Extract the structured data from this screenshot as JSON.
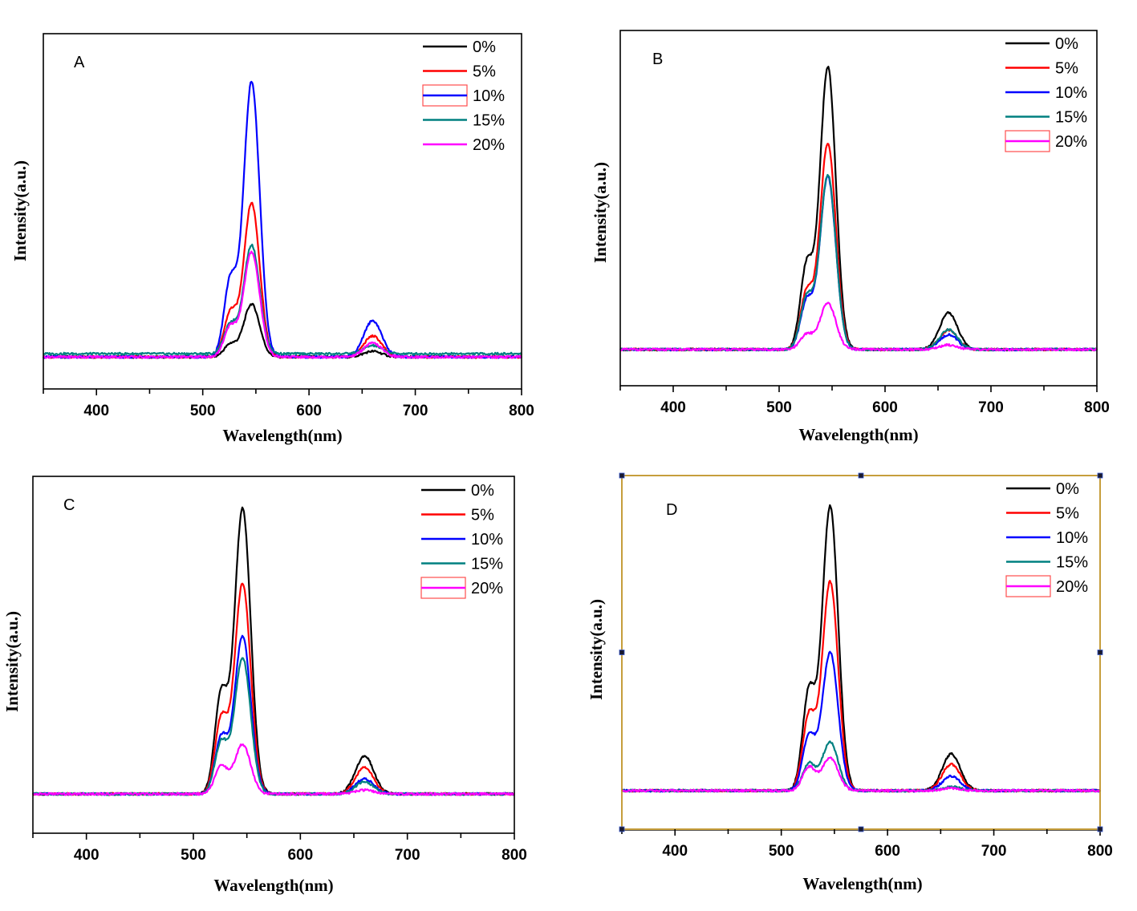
{
  "chart_data": [
    {
      "type": "line",
      "panel": "A",
      "xlabel": "Wavelength(nm)",
      "ylabel": "Intensity(a.u.)",
      "xlim": [
        350,
        800
      ],
      "ylim": [
        0,
        1
      ],
      "xticks": [
        400,
        500,
        600,
        700,
        800
      ],
      "grid": false,
      "legend_position": "top-right",
      "highlighted_legend": "10%",
      "frame_selected": false,
      "series": [
        {
          "name": "0%",
          "color": "#000000",
          "baseline": 0.09,
          "shoulder_527": 0.131,
          "peak_546": 0.239,
          "peak_660": 0.106
        },
        {
          "name": "5%",
          "color": "#ff0000",
          "baseline": 0.09,
          "shoulder_527": 0.23,
          "peak_546": 0.524,
          "peak_660": 0.149
        },
        {
          "name": "10%",
          "color": "#0000ff",
          "baseline": 0.09,
          "shoulder_527": 0.334,
          "peak_546": 0.867,
          "peak_660": 0.192
        },
        {
          "name": "15%",
          "color": "#008080",
          "baseline": 0.099,
          "shoulder_527": 0.192,
          "peak_546": 0.406,
          "peak_660": 0.122
        },
        {
          "name": "20%",
          "color": "#ff00ff",
          "baseline": 0.09,
          "shoulder_527": 0.185,
          "peak_546": 0.386,
          "peak_660": 0.129
        }
      ]
    },
    {
      "type": "line",
      "panel": "B",
      "xlabel": "Wavelength(nm)",
      "ylabel": "Intensity(a.u.)",
      "xlim": [
        350,
        800
      ],
      "ylim": [
        0,
        1
      ],
      "xticks": [
        400,
        500,
        600,
        700,
        800
      ],
      "grid": false,
      "legend_position": "top-right",
      "highlighted_legend": "20%",
      "frame_selected": false,
      "series": [
        {
          "name": "0%",
          "color": "#000000",
          "baseline": 0.102,
          "shoulder_527": 0.368,
          "peak_546": 0.898,
          "peak_660": 0.205
        },
        {
          "name": "5%",
          "color": "#ff0000",
          "baseline": 0.102,
          "shoulder_527": 0.284,
          "peak_546": 0.684,
          "peak_660": 0.156
        },
        {
          "name": "10%",
          "color": "#0000ff",
          "baseline": 0.102,
          "shoulder_527": 0.255,
          "peak_546": 0.589,
          "peak_660": 0.144
        },
        {
          "name": "15%",
          "color": "#008080",
          "baseline": 0.102,
          "shoulder_527": 0.266,
          "peak_546": 0.594,
          "peak_660": 0.158
        },
        {
          "name": "20%",
          "color": "#ff00ff",
          "baseline": 0.102,
          "shoulder_527": 0.149,
          "peak_546": 0.233,
          "peak_660": 0.115
        }
      ]
    },
    {
      "type": "line",
      "panel": "C",
      "xlabel": "Wavelength(nm)",
      "ylabel": "Intensity(a.u.)",
      "xlim": [
        350,
        800
      ],
      "ylim": [
        0,
        1
      ],
      "xticks": [
        400,
        500,
        600,
        700,
        800
      ],
      "grid": false,
      "legend_position": "top-right",
      "highlighted_legend": "20%",
      "frame_selected": false,
      "series": [
        {
          "name": "0%",
          "color": "#000000",
          "baseline": 0.11,
          "shoulder_527": 0.42,
          "peak_546": 0.912,
          "peak_660": 0.216
        },
        {
          "name": "5%",
          "color": "#ff0000",
          "baseline": 0.11,
          "shoulder_527": 0.342,
          "peak_546": 0.701,
          "peak_660": 0.184
        },
        {
          "name": "10%",
          "color": "#0000ff",
          "baseline": 0.11,
          "shoulder_527": 0.283,
          "peak_546": 0.553,
          "peak_660": 0.153
        },
        {
          "name": "15%",
          "color": "#008080",
          "baseline": 0.11,
          "shoulder_527": 0.267,
          "peak_546": 0.492,
          "peak_660": 0.144
        },
        {
          "name": "20%",
          "color": "#ff00ff",
          "baseline": 0.11,
          "shoulder_527": 0.193,
          "peak_546": 0.249,
          "peak_660": 0.121
        }
      ]
    },
    {
      "type": "line",
      "panel": "D",
      "xlabel": "Wavelength(nm)",
      "ylabel": "Intensity(a.u.)",
      "xlim": [
        350,
        800
      ],
      "ylim": [
        0,
        1
      ],
      "xticks": [
        400,
        500,
        600,
        700,
        800
      ],
      "grid": false,
      "legend_position": "top-right",
      "highlighted_legend": "20%",
      "frame_selected": true,
      "frame_color": "#b8860b",
      "series": [
        {
          "name": "0%",
          "color": "#000000",
          "baseline": 0.109,
          "shoulder_527": 0.417,
          "peak_546": 0.914,
          "peak_660": 0.213
        },
        {
          "name": "5%",
          "color": "#ff0000",
          "baseline": 0.109,
          "shoulder_527": 0.342,
          "peak_546": 0.701,
          "peak_660": 0.184
        },
        {
          "name": "10%",
          "color": "#0000ff",
          "baseline": 0.109,
          "shoulder_527": 0.277,
          "peak_546": 0.501,
          "peak_660": 0.15
        },
        {
          "name": "15%",
          "color": "#008080",
          "baseline": 0.109,
          "shoulder_527": 0.19,
          "peak_546": 0.247,
          "peak_660": 0.12
        },
        {
          "name": "20%",
          "color": "#ff00ff",
          "baseline": 0.109,
          "shoulder_527": 0.179,
          "peak_546": 0.202,
          "peak_660": 0.116
        }
      ]
    }
  ],
  "legend_highlight_color": "#ff4d4d"
}
